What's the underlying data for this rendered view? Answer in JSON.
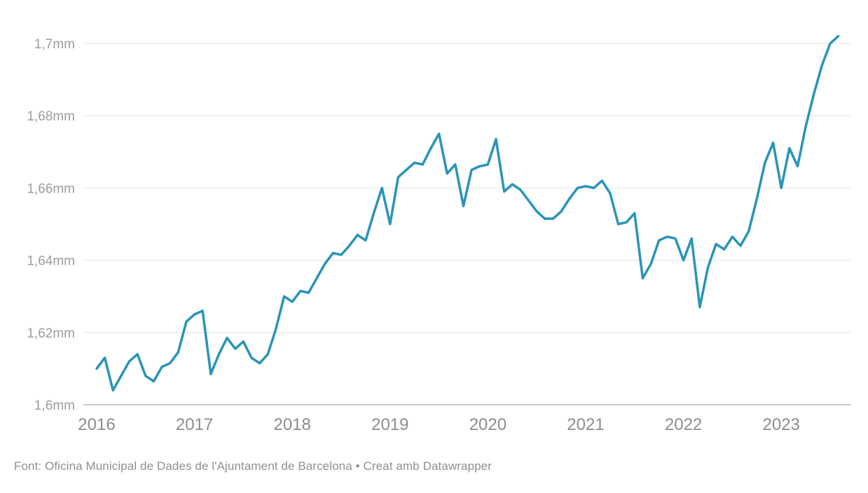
{
  "chart_data": {
    "type": "line",
    "title": "",
    "unit_suffix": "mm",
    "frequency": "monthly",
    "line_color": "#2994b8",
    "grid_color": "#e2e2e2",
    "baseline_color": "#b9b9b9",
    "label_color": "#9d9d9d",
    "grid": "horizontal",
    "legend": "none",
    "ylim": [
      1.6,
      1.712
    ],
    "y_tick_values": [
      1.6,
      1.62,
      1.64,
      1.66,
      1.68,
      1.7
    ],
    "y_tick_labels": [
      "1,6mm",
      "1,62mm",
      "1,64mm",
      "1,66mm",
      "1,68mm",
      "1,7mm"
    ],
    "x_tick_labels": [
      "2016",
      "2017",
      "2018",
      "2019",
      "2020",
      "2021",
      "2022",
      "2023"
    ],
    "months": [
      "2016-01",
      "2016-02",
      "2016-03",
      "2016-04",
      "2016-05",
      "2016-06",
      "2016-07",
      "2016-08",
      "2016-09",
      "2016-10",
      "2016-11",
      "2016-12",
      "2017-01",
      "2017-02",
      "2017-03",
      "2017-04",
      "2017-05",
      "2017-06",
      "2017-07",
      "2017-08",
      "2017-09",
      "2017-10",
      "2017-11",
      "2017-12",
      "2018-01",
      "2018-02",
      "2018-03",
      "2018-04",
      "2018-05",
      "2018-06",
      "2018-07",
      "2018-08",
      "2018-09",
      "2018-10",
      "2018-11",
      "2018-12",
      "2019-01",
      "2019-02",
      "2019-03",
      "2019-04",
      "2019-05",
      "2019-06",
      "2019-07",
      "2019-08",
      "2019-09",
      "2019-10",
      "2019-11",
      "2019-12",
      "2020-01",
      "2020-02",
      "2020-03",
      "2020-04",
      "2020-05",
      "2020-06",
      "2020-07",
      "2020-08",
      "2020-09",
      "2020-10",
      "2020-11",
      "2020-12",
      "2021-01",
      "2021-02",
      "2021-03",
      "2021-04",
      "2021-05",
      "2021-06",
      "2021-07",
      "2021-08",
      "2021-09",
      "2021-10",
      "2021-11",
      "2021-12",
      "2022-01",
      "2022-02",
      "2022-03",
      "2022-04",
      "2022-05",
      "2022-06",
      "2022-07",
      "2022-08",
      "2022-09",
      "2022-10",
      "2022-11",
      "2022-12",
      "2023-01",
      "2023-02",
      "2023-03",
      "2023-04",
      "2023-05",
      "2023-06",
      "2023-07",
      "2023-08"
    ],
    "values": [
      1.61,
      1.613,
      1.604,
      1.608,
      1.612,
      1.614,
      1.608,
      1.6065,
      1.6105,
      1.6115,
      1.6145,
      1.623,
      1.625,
      1.626,
      1.6085,
      1.614,
      1.6185,
      1.6155,
      1.6175,
      1.613,
      1.6115,
      1.614,
      1.621,
      1.63,
      1.6285,
      1.6315,
      1.631,
      1.635,
      1.639,
      1.642,
      1.6415,
      1.644,
      1.647,
      1.6455,
      1.653,
      1.66,
      1.65,
      1.663,
      1.665,
      1.667,
      1.6665,
      1.671,
      1.675,
      1.664,
      1.6665,
      1.655,
      1.665,
      1.666,
      1.6665,
      1.6735,
      1.659,
      1.661,
      1.6595,
      1.6565,
      1.6535,
      1.6515,
      1.6515,
      1.6535,
      1.657,
      1.66,
      1.6605,
      1.66,
      1.662,
      1.6585,
      1.65,
      1.6505,
      1.653,
      1.635,
      1.639,
      1.6455,
      1.6465,
      1.646,
      1.64,
      1.646,
      1.627,
      1.638,
      1.6445,
      1.643,
      1.6465,
      1.644,
      1.648,
      1.657,
      1.667,
      1.6725,
      1.66,
      1.671,
      1.666,
      1.677,
      1.686,
      1.694,
      1.7,
      1.702
    ]
  },
  "footer": {
    "text": "Font: Oficina Municipal de Dades de l'Ajuntament de Barcelona • Creat amb Datawrapper"
  }
}
